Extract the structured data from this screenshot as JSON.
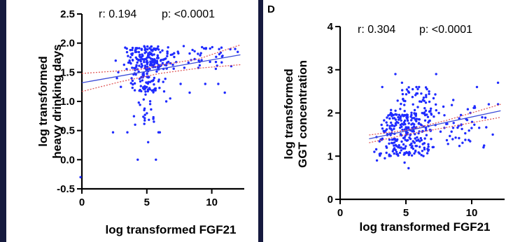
{
  "chart_data": [
    {
      "type": "scatter",
      "panel_letter": "",
      "stats": {
        "r": "r: 0.194",
        "p": "p: <0.0001"
      },
      "xlabel": "log transformed FGF21",
      "ylabel": [
        "log transformed",
        "heavy drinking days"
      ],
      "xlim": [
        0,
        12.5
      ],
      "ylim": [
        -0.5,
        2.5
      ],
      "xticks": [
        "0",
        "5",
        "10"
      ],
      "yticks": [
        "-0.5",
        "0.0",
        "0.5",
        "1.0",
        "1.5",
        "2.0",
        "2.5"
      ],
      "xtick_values": [
        0,
        5,
        10
      ],
      "ytick_values": [
        -0.5,
        0,
        0.5,
        1,
        1.5,
        2,
        2.5
      ],
      "point_color": "#1f2bff",
      "fit_color": "#3b4bd8",
      "ci_color": "#e05a5a",
      "fit_line": [
        [
          0,
          1.32
        ],
        [
          12.2,
          1.8
        ]
      ],
      "ci_upper": [
        [
          0,
          1.48
        ],
        [
          4.5,
          1.55
        ],
        [
          6,
          1.62
        ],
        [
          9,
          1.73
        ],
        [
          12.2,
          1.97
        ]
      ],
      "ci_lower": [
        [
          0,
          1.17
        ],
        [
          3,
          1.34
        ],
        [
          6,
          1.48
        ],
        [
          9,
          1.57
        ],
        [
          12.2,
          1.63
        ]
      ],
      "seed": 7,
      "points_generated": [
        {
          "n": 180,
          "xmin": 3.0,
          "xmax": 7.2,
          "ymin": 1.55,
          "ymax": 1.95
        },
        {
          "n": 70,
          "xmin": 3.5,
          "xmax": 6.5,
          "ymin": 1.15,
          "ymax": 1.55
        },
        {
          "n": 40,
          "xmin": 7.0,
          "xmax": 11.8,
          "ymin": 1.55,
          "ymax": 1.95
        },
        {
          "n": 18,
          "xmin": 4.0,
          "xmax": 6.3,
          "ymin": 0.55,
          "ymax": 1.15
        }
      ],
      "points": [
        [
          2.4,
          0.47
        ],
        [
          3.5,
          0.47
        ],
        [
          4.3,
          0.0
        ],
        [
          5.7,
          0.0
        ],
        [
          6.0,
          0.47
        ],
        [
          5.9,
          0.47
        ],
        [
          4.1,
          0.6
        ],
        [
          5.1,
          0.3
        ],
        [
          -0.1,
          -0.3
        ],
        [
          11.0,
          1.15
        ],
        [
          10.5,
          1.3
        ],
        [
          8.3,
          1.15
        ],
        [
          9.5,
          1.3
        ],
        [
          2.8,
          1.5
        ],
        [
          3.0,
          1.25
        ],
        [
          7.6,
          1.3
        ],
        [
          2.6,
          1.7
        ],
        [
          2.7,
          1.4
        ],
        [
          12.0,
          1.85
        ],
        [
          11.8,
          1.9
        ],
        [
          6.5,
          1.0
        ],
        [
          4.8,
          0.85
        ],
        [
          5.5,
          0.7
        ],
        [
          6.8,
          1.05
        ]
      ]
    },
    {
      "type": "scatter",
      "panel_letter": "D",
      "stats": {
        "r": "r: 0.304",
        "p": "p: <0.0001"
      },
      "xlabel": "log transformed FGF21",
      "ylabel": [
        "log transformed",
        "GGT concentration"
      ],
      "xlim": [
        0,
        12.5
      ],
      "ylim": [
        0,
        4
      ],
      "xticks": [
        "0",
        "5",
        "10"
      ],
      "yticks": [
        "0",
        "1",
        "2",
        "3",
        "4"
      ],
      "xtick_values": [
        0,
        5,
        10
      ],
      "ytick_values": [
        0,
        1,
        2,
        3,
        4
      ],
      "point_color": "#1f2bff",
      "fit_color": "#3b4bd8",
      "ci_color": "#e05a5a",
      "fit_line": [
        [
          2.2,
          1.4
        ],
        [
          12.2,
          2.05
        ]
      ],
      "ci_upper": [
        [
          2.2,
          1.49
        ],
        [
          5,
          1.6
        ],
        [
          8,
          1.82
        ],
        [
          12.2,
          2.2
        ]
      ],
      "ci_lower": [
        [
          2.2,
          1.31
        ],
        [
          5,
          1.5
        ],
        [
          8,
          1.66
        ],
        [
          12.2,
          1.9
        ]
      ],
      "seed": 13,
      "points_generated": [
        {
          "n": 260,
          "xmin": 2.5,
          "xmax": 7.5,
          "ymin": 1.0,
          "ymax": 2.0
        },
        {
          "n": 60,
          "xmin": 3.5,
          "xmax": 7.5,
          "ymin": 1.9,
          "ymax": 2.6
        },
        {
          "n": 45,
          "xmin": 7.0,
          "xmax": 11.5,
          "ymin": 1.2,
          "ymax": 2.2
        }
      ],
      "points": [
        [
          4.2,
          2.9
        ],
        [
          7.3,
          2.9
        ],
        [
          3.2,
          2.6
        ],
        [
          6.0,
          2.6
        ],
        [
          6.6,
          2.55
        ],
        [
          12.0,
          2.7
        ],
        [
          10.4,
          2.6
        ],
        [
          11.3,
          2.2
        ],
        [
          11.6,
          1.5
        ],
        [
          9.0,
          1.7
        ],
        [
          5.2,
          0.72
        ],
        [
          2.6,
          1.1
        ],
        [
          2.8,
          0.9
        ],
        [
          3.0,
          1.05
        ],
        [
          5.8,
          2.45
        ],
        [
          8.6,
          2.3
        ],
        [
          4.7,
          2.7
        ],
        [
          6.3,
          2.3
        ],
        [
          9.9,
          2.0
        ],
        [
          12.0,
          2.2
        ],
        [
          10.8,
          1.9
        ],
        [
          3.4,
          0.95
        ],
        [
          4.9,
          0.85
        ],
        [
          6.9,
          2.1
        ]
      ]
    }
  ]
}
